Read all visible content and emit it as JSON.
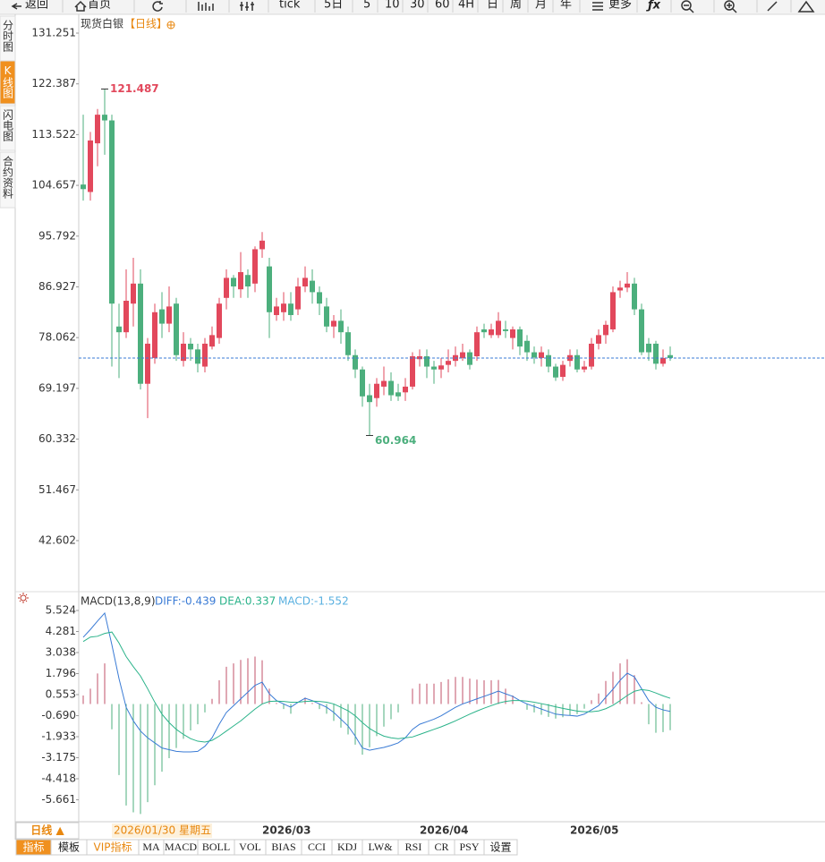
{
  "toolbar": [
    "返回",
    "首页",
    "tick",
    "5日",
    "5",
    "10",
    "30",
    "60",
    "4H",
    "日",
    "周",
    "月",
    "年",
    "更多"
  ],
  "sidebar": [
    "分时图",
    "K线图",
    "闪电图",
    "合约资料"
  ],
  "sidebar_active": 1,
  "tabs": [
    "指标",
    "模板",
    "VIP指标",
    "MA",
    "MACD",
    "BOLL",
    "VOL",
    "BIAS",
    "CCI",
    "KDJ",
    "LW&",
    "RSI",
    "CR",
    "PSY",
    "设置"
  ],
  "period_button": "日线 ▲",
  "chart_data": {
    "type": "candlestick",
    "title": "现货白银",
    "subtitle": "【日线】",
    "up_color": "#e2485c",
    "down_color": "#4caf7d",
    "ylim": [
      33.84,
      134.69
    ],
    "yticks": [
      131.251,
      122.387,
      113.522,
      104.657,
      95.792,
      86.927,
      78.062,
      69.197,
      60.332,
      51.467,
      42.602
    ],
    "max_label_index": 3,
    "min_label_index": 40,
    "categories": [
      null,
      null,
      null,
      null,
      "2026/01/30 星期五",
      null,
      null,
      null,
      null,
      null,
      null,
      null,
      null,
      null,
      null,
      null,
      null,
      null,
      null,
      null,
      null,
      null,
      null,
      null,
      null,
      "2026/03",
      null,
      null,
      null,
      null,
      null,
      null,
      null,
      null,
      null,
      null,
      null,
      null,
      null,
      null,
      null,
      null,
      null,
      null,
      null,
      null,
      null,
      "2026/04",
      null,
      null,
      null,
      null,
      null,
      null,
      null,
      null,
      null,
      null,
      null,
      null,
      null,
      null,
      null,
      null,
      null,
      null,
      null,
      null,
      "2026/05",
      null,
      null,
      null,
      null,
      null,
      null,
      null,
      null,
      null,
      null,
      null,
      null,
      null,
      null
    ],
    "cursor_index": 4,
    "open": [
      104.8,
      103.5,
      112,
      117,
      116,
      80,
      79,
      84,
      87.5,
      70,
      74.5,
      83,
      80.5,
      84,
      74,
      77,
      76,
      73,
      76.5,
      78,
      85,
      88.5,
      86.5,
      89,
      87.5,
      93.5,
      90.5,
      82,
      82.5,
      84,
      83,
      87,
      88,
      86,
      83.5,
      80,
      81,
      79,
      75,
      72.5,
      68,
      67.5,
      69.5,
      70.5,
      68.5,
      68.5,
      69.5,
      74.3,
      74.8,
      73,
      72.5,
      73.3,
      74,
      74.5,
      75.5,
      74.8,
      79.5,
      78.5,
      78.5,
      79.5,
      78,
      79.5,
      77.5,
      75.5,
      74.5,
      75,
      73,
      71.2,
      74,
      75,
      72.5,
      73,
      77,
      78.5,
      79.5,
      86.3,
      86.8,
      87.5,
      83,
      77,
      77,
      73.5,
      75
    ],
    "high": [
      117,
      114,
      118,
      121.487,
      117,
      84,
      90,
      92,
      90,
      78,
      84,
      86,
      87,
      85,
      79,
      78,
      77,
      78,
      80,
      85,
      90,
      89,
      93,
      90,
      94,
      96.5,
      92,
      85,
      86,
      86,
      88.5,
      90.5,
      90,
      87,
      85,
      82,
      83,
      80,
      76,
      73,
      70,
      71,
      73,
      72,
      70,
      71,
      75.5,
      76,
      76,
      74,
      74.5,
      76,
      76.5,
      77,
      76,
      80,
      80.5,
      80.5,
      82.5,
      81,
      80,
      80,
      78.5,
      76.5,
      76.5,
      76,
      73.5,
      74,
      76,
      76,
      74,
      78,
      79.5,
      81,
      87,
      88,
      89.5,
      88.5,
      84,
      78,
      77.5,
      76,
      76.5
    ],
    "low": [
      102,
      102,
      108,
      110,
      73,
      71,
      78,
      80,
      69,
      64,
      73.5,
      78,
      79,
      74,
      73,
      74,
      72,
      72,
      76,
      77,
      83,
      85,
      85,
      85,
      86,
      92,
      78,
      81,
      81,
      81,
      82,
      86,
      84,
      82,
      79,
      78,
      77,
      74,
      71,
      66,
      60.964,
      66,
      68,
      67,
      67,
      67,
      69,
      73,
      71,
      70,
      71,
      72,
      73,
      74,
      72.5,
      74,
      78,
      78,
      78,
      78,
      76,
      75,
      74,
      73.5,
      73,
      72,
      70.5,
      70.5,
      73,
      72,
      72,
      72.5,
      76,
      77,
      79,
      85,
      86,
      82,
      75,
      74,
      72.5,
      73,
      74
    ],
    "close": [
      104,
      112.5,
      117,
      116,
      84,
      79,
      84.5,
      87.5,
      70,
      77,
      82.5,
      80.5,
      83.5,
      75,
      77,
      76,
      73.5,
      77,
      78.5,
      84,
      88.5,
      87,
      89.5,
      87,
      93.5,
      95,
      82.5,
      83.5,
      84,
      82,
      87,
      88.5,
      86,
      84,
      80,
      81,
      79,
      75,
      72.5,
      67.8,
      66.8,
      70,
      70.5,
      68,
      67.8,
      69.5,
      74.8,
      74.8,
      73,
      72.5,
      73.2,
      74,
      75,
      75.5,
      73.3,
      79,
      79,
      79.5,
      81,
      79.2,
      79.5,
      76.5,
      75.5,
      74.6,
      75.5,
      73,
      71.1,
      73.3,
      75,
      72.5,
      73,
      77,
      78.5,
      80.3,
      86,
      86.8,
      87.5,
      83,
      75.5,
      75.5,
      73.5,
      74.5,
      74.5
    ],
    "price_line_color": "#3a7bd5",
    "macd": {
      "name": "MACD(13,8,9)",
      "diff_label": "DIFF:-0.439",
      "dea_label": "DEA:0.337",
      "macd_label": "MACD:-1.552",
      "ylim": [
        -6.958,
        6.582
      ],
      "yticks": [
        5.524,
        4.281,
        3.038,
        1.796,
        0.553,
        -0.69,
        -1.933,
        -3.175,
        -4.418,
        -5.661
      ],
      "ytick_labels": [
        "5.524",
        "4.281",
        "3.038",
        "1.796",
        "0.553",
        "-0.690",
        "-1.933",
        "-3.175",
        "-4.418",
        "-5.661"
      ],
      "diff_color": "#3a7bd5",
      "dea_color": "#2bb38a",
      "hist_up_color": "#c0506a",
      "hist_down_color": "#4caf7d",
      "diff": [
        3.94,
        4.4,
        4.9,
        5.37,
        3.5,
        1.5,
        -0.2,
        -1.0,
        -1.6,
        -2.0,
        -2.3,
        -2.6,
        -2.7,
        -2.8,
        -2.83,
        -2.83,
        -2.8,
        -2.5,
        -2.0,
        -1.2,
        -0.5,
        -0.1,
        0.3,
        0.7,
        1.1,
        1.29,
        0.6,
        0.2,
        0.0,
        -0.19,
        0.1,
        0.34,
        0.2,
        0.0,
        -0.19,
        -0.5,
        -0.9,
        -1.3,
        -1.9,
        -2.6,
        -2.73,
        -2.65,
        -2.57,
        -2.45,
        -2.3,
        -2.0,
        -1.5,
        -1.2,
        -1.05,
        -0.9,
        -0.7,
        -0.45,
        -0.2,
        0.0,
        0.15,
        0.3,
        0.45,
        0.6,
        0.76,
        0.6,
        0.45,
        0.2,
        0.0,
        -0.15,
        -0.3,
        -0.45,
        -0.6,
        -0.65,
        -0.68,
        -0.72,
        -0.6,
        -0.35,
        -0.1,
        0.4,
        0.87,
        1.4,
        1.82,
        1.6,
        0.9,
        0.2,
        -0.2,
        -0.35,
        -0.439
      ],
      "dea": [
        3.69,
        3.95,
        4.0,
        4.17,
        4.25,
        3.6,
        2.8,
        2.2,
        1.65,
        0.9,
        0.1,
        -0.6,
        -1.1,
        -1.5,
        -1.8,
        -2.05,
        -2.2,
        -2.25,
        -2.15,
        -1.9,
        -1.6,
        -1.3,
        -1.0,
        -0.65,
        -0.3,
        0.0,
        0.15,
        0.17,
        0.15,
        0.1,
        0.1,
        0.15,
        0.17,
        0.15,
        0.1,
        0.0,
        -0.2,
        -0.4,
        -0.7,
        -1.1,
        -1.45,
        -1.7,
        -1.9,
        -2.0,
        -2.05,
        -2.0,
        -1.95,
        -1.8,
        -1.65,
        -1.5,
        -1.35,
        -1.18,
        -1.0,
        -0.8,
        -0.6,
        -0.42,
        -0.25,
        -0.1,
        0.05,
        0.15,
        0.2,
        0.2,
        0.17,
        0.1,
        0.02,
        -0.07,
        -0.17,
        -0.26,
        -0.34,
        -0.42,
        -0.46,
        -0.46,
        -0.41,
        -0.28,
        -0.08,
        0.2,
        0.5,
        0.75,
        0.85,
        0.8,
        0.65,
        0.48,
        0.337
      ],
      "hist": [
        0.5,
        0.9,
        1.8,
        2.4,
        -1.5,
        -4.2,
        -6.0,
        -6.4,
        -6.5,
        -5.8,
        -4.8,
        -4.0,
        -3.2,
        -2.6,
        -2.06,
        -1.56,
        -1.2,
        -0.5,
        0.3,
        1.4,
        2.2,
        2.4,
        2.6,
        2.7,
        2.8,
        2.58,
        0.9,
        0.06,
        -0.3,
        -0.58,
        0,
        0.38,
        0.06,
        -0.3,
        -0.58,
        -1.0,
        -1.4,
        -1.8,
        -2.4,
        -3.0,
        -2.56,
        -1.9,
        -1.34,
        -0.9,
        -0.5,
        0,
        0.9,
        1.2,
        1.2,
        1.2,
        1.3,
        1.46,
        1.6,
        1.6,
        1.5,
        1.44,
        1.4,
        1.4,
        1.42,
        0.9,
        0.5,
        0,
        -0.34,
        -0.5,
        -0.64,
        -0.76,
        -0.86,
        -0.78,
        -0.68,
        -0.6,
        -0.28,
        0.22,
        0.62,
        1.36,
        1.9,
        2.4,
        2.64,
        1.7,
        0.1,
        -1.2,
        -1.7,
        -1.66,
        -1.552
      ]
    }
  }
}
